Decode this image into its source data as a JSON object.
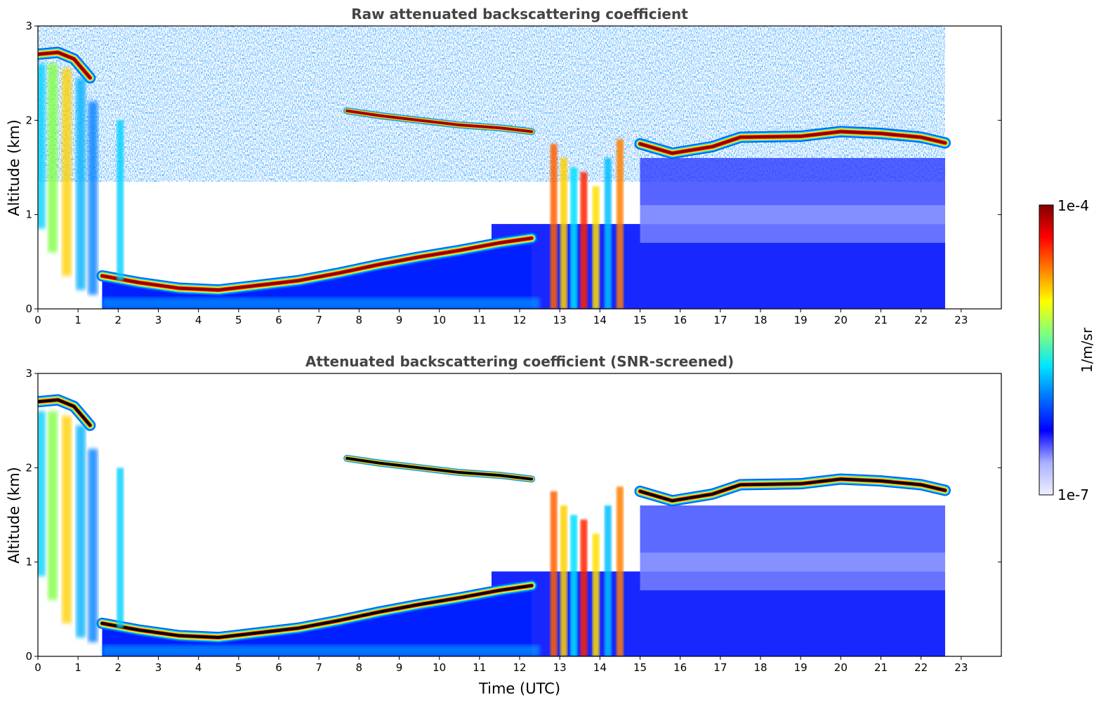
{
  "chart_data": [
    {
      "type": "heatmap",
      "title": "Raw attenuated backscattering coefficient",
      "xlabel": "",
      "ylabel": "Altitude (km)",
      "xlim": [
        0,
        24
      ],
      "ylim": [
        0,
        3
      ],
      "xticks": [
        "0",
        "1",
        "2",
        "3",
        "4",
        "5",
        "6",
        "7",
        "8",
        "9",
        "10",
        "11",
        "12",
        "13",
        "14",
        "15",
        "16",
        "17",
        "18",
        "19",
        "20",
        "21",
        "22",
        "23"
      ],
      "yticks": [
        "0",
        "1",
        "2",
        "3"
      ],
      "data_end_time": 22.6,
      "colormap": "jet",
      "color_scale": "log",
      "features": {
        "boundary_layer_top_km": [
          [
            1.6,
            0.35
          ],
          [
            2.5,
            0.28
          ],
          [
            3.5,
            0.22
          ],
          [
            4.5,
            0.2
          ],
          [
            5.5,
            0.25
          ],
          [
            6.5,
            0.3
          ],
          [
            7.5,
            0.38
          ],
          [
            8.5,
            0.47
          ],
          [
            9.5,
            0.55
          ],
          [
            10.5,
            0.62
          ],
          [
            11.5,
            0.7
          ],
          [
            12.3,
            0.75
          ]
        ],
        "upper_cloud_km": [
          [
            0,
            2.7
          ],
          [
            0.5,
            2.72
          ],
          [
            0.9,
            2.65
          ],
          [
            1.3,
            2.45
          ]
        ],
        "mid_cloud_km": [
          [
            7.7,
            2.1
          ],
          [
            8.5,
            2.05
          ],
          [
            9.5,
            2.0
          ],
          [
            10.5,
            1.95
          ],
          [
            11.5,
            1.92
          ],
          [
            12.3,
            1.88
          ]
        ],
        "stratocumulus_top_km": [
          [
            15,
            1.75
          ],
          [
            15.8,
            1.65
          ],
          [
            16.8,
            1.72
          ],
          [
            17.5,
            1.82
          ],
          [
            19,
            1.83
          ],
          [
            20,
            1.88
          ],
          [
            21,
            1.86
          ],
          [
            22,
            1.82
          ],
          [
            22.6,
            1.76
          ]
        ]
      }
    },
    {
      "type": "heatmap",
      "title": "Attenuated backscattering coefficient (SNR-screened)",
      "xlabel": "Time (UTC)",
      "ylabel": "Altitude (km)",
      "xlim": [
        0,
        24
      ],
      "ylim": [
        0,
        3
      ],
      "xticks": [
        "0",
        "1",
        "2",
        "3",
        "4",
        "5",
        "6",
        "7",
        "8",
        "9",
        "10",
        "11",
        "12",
        "13",
        "14",
        "15",
        "16",
        "17",
        "18",
        "19",
        "20",
        "21",
        "22",
        "23"
      ],
      "yticks": [
        "0",
        "1",
        "2",
        "3"
      ],
      "data_end_time": 22.6,
      "colormap": "jet",
      "color_scale": "log",
      "max_value_color": "#000000"
    }
  ],
  "colorbar": {
    "label": "1/m/sr",
    "max_label": "1e-4",
    "min_label": "1e-7",
    "colors": [
      "#eef0ff",
      "#aab0ff",
      "#0000ff",
      "#0070ff",
      "#00e5ff",
      "#7fff7f",
      "#ffff00",
      "#ff8000",
      "#ff0000",
      "#800000"
    ]
  }
}
